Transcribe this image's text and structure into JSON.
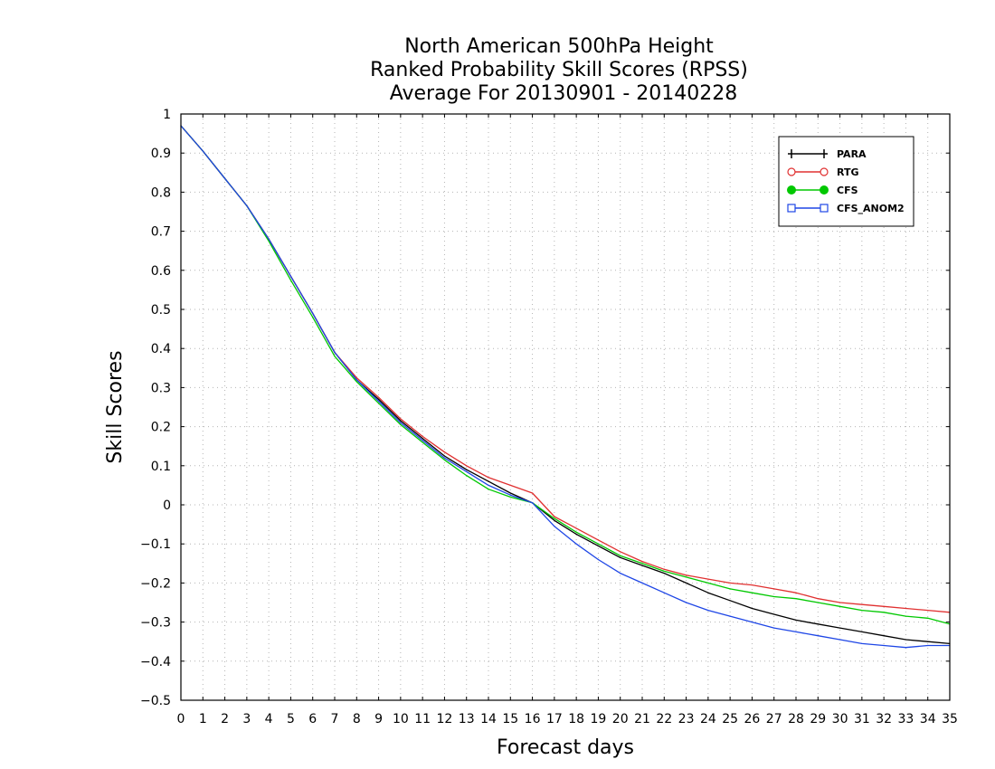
{
  "chart_data": {
    "type": "line",
    "title": [
      "North American 500hPa Height",
      "Ranked Probability Skill Scores (RPSS)",
      "Average For 20130901 - 20140228"
    ],
    "xlabel": "Forecast days",
    "ylabel": "Skill Scores",
    "xlim": [
      0,
      35
    ],
    "ylim": [
      -0.5,
      1
    ],
    "xticks": [
      0,
      1,
      2,
      3,
      4,
      5,
      6,
      7,
      8,
      9,
      10,
      11,
      12,
      13,
      14,
      15,
      16,
      17,
      18,
      19,
      20,
      21,
      22,
      23,
      24,
      25,
      26,
      27,
      28,
      29,
      30,
      31,
      32,
      33,
      34,
      35
    ],
    "yticks": [
      1,
      0.9,
      0.8,
      0.7,
      0.6,
      0.5,
      0.4,
      0.3,
      0.2,
      0.1,
      0,
      -0.1,
      -0.2,
      -0.3,
      -0.4,
      -0.5
    ],
    "ytick_labels": [
      "1",
      "0.9",
      "0.8",
      "0.7",
      "0.6",
      "0.5",
      "0.4",
      "0.3",
      "0.2",
      "0.1",
      "0",
      "−0.1",
      "−0.2",
      "−0.3",
      "−0.4",
      "−0.5"
    ],
    "grid": true,
    "legend_position": "top-right",
    "x": [
      0,
      1,
      2,
      3,
      4,
      5,
      6,
      7,
      8,
      9,
      10,
      11,
      12,
      13,
      14,
      15,
      16,
      17,
      18,
      19,
      20,
      21,
      22,
      23,
      24,
      25,
      26,
      27,
      28,
      29,
      30,
      31,
      32,
      33,
      34,
      35
    ],
    "series": [
      {
        "name": "PARA",
        "color": "#000000",
        "marker": "plus",
        "values": [
          0.97,
          0.905,
          0.835,
          0.765,
          0.68,
          0.585,
          0.49,
          0.39,
          0.32,
          0.27,
          0.215,
          0.17,
          0.125,
          0.09,
          0.06,
          0.03,
          0.005,
          -0.04,
          -0.075,
          -0.105,
          -0.135,
          -0.155,
          -0.175,
          -0.2,
          -0.225,
          -0.245,
          -0.265,
          -0.28,
          -0.295,
          -0.305,
          -0.315,
          -0.325,
          -0.335,
          -0.345,
          -0.35,
          -0.355
        ]
      },
      {
        "name": "RTG",
        "color": "#e03030",
        "marker": "open-circle",
        "values": [
          0.97,
          0.905,
          0.835,
          0.765,
          0.68,
          0.585,
          0.49,
          0.39,
          0.325,
          0.275,
          0.22,
          0.175,
          0.135,
          0.1,
          0.07,
          0.05,
          0.03,
          -0.03,
          -0.06,
          -0.09,
          -0.12,
          -0.145,
          -0.165,
          -0.18,
          -0.19,
          -0.2,
          -0.205,
          -0.215,
          -0.225,
          -0.24,
          -0.25,
          -0.255,
          -0.26,
          -0.265,
          -0.27,
          -0.275
        ]
      },
      {
        "name": "CFS",
        "color": "#00c800",
        "marker": "filled-circle",
        "values": [
          0.97,
          0.905,
          0.835,
          0.765,
          0.675,
          0.575,
          0.48,
          0.38,
          0.315,
          0.26,
          0.205,
          0.16,
          0.115,
          0.075,
          0.04,
          0.02,
          0.005,
          -0.035,
          -0.07,
          -0.1,
          -0.13,
          -0.15,
          -0.17,
          -0.185,
          -0.2,
          -0.215,
          -0.225,
          -0.235,
          -0.24,
          -0.25,
          -0.26,
          -0.27,
          -0.275,
          -0.285,
          -0.29,
          -0.305
        ]
      },
      {
        "name": "CFS_ANOM2",
        "color": "#1e46e6",
        "marker": "open-square",
        "values": [
          0.97,
          0.905,
          0.835,
          0.765,
          0.68,
          0.585,
          0.49,
          0.39,
          0.32,
          0.265,
          0.21,
          0.165,
          0.12,
          0.085,
          0.05,
          0.025,
          0.005,
          -0.055,
          -0.1,
          -0.14,
          -0.175,
          -0.2,
          -0.225,
          -0.25,
          -0.27,
          -0.285,
          -0.3,
          -0.315,
          -0.325,
          -0.335,
          -0.345,
          -0.355,
          -0.36,
          -0.365,
          -0.36,
          -0.36
        ]
      }
    ]
  }
}
